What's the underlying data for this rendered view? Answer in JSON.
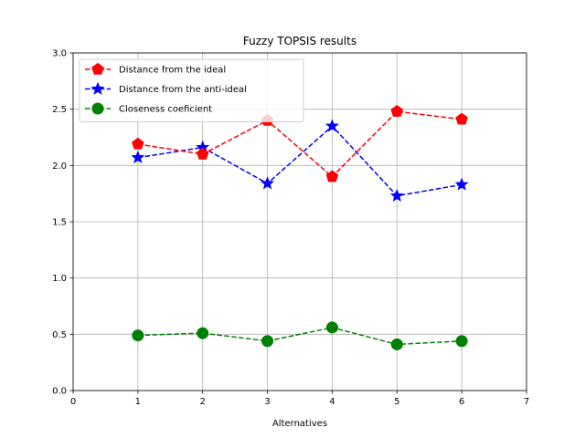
{
  "chart_data": {
    "type": "line",
    "title": "Fuzzy TOPSIS results",
    "xlabel": "Alternatives",
    "ylabel": "",
    "xlim": [
      0,
      7
    ],
    "ylim": [
      0.0,
      3.0
    ],
    "xticks": [
      "0",
      "1",
      "2",
      "3",
      "4",
      "5",
      "6",
      "7"
    ],
    "yticks": [
      "0.0",
      "0.5",
      "1.0",
      "1.5",
      "2.0",
      "2.5",
      "3.0"
    ],
    "grid": true,
    "legend_position": "top-left",
    "x": [
      1,
      2,
      3,
      4,
      5,
      6
    ],
    "series": [
      {
        "name": "Distance from the ideal",
        "values": [
          2.19,
          2.1,
          2.4,
          1.9,
          2.48,
          2.41
        ],
        "color": "#ff0000",
        "marker": "pentagon",
        "line_style": "dashed"
      },
      {
        "name": "Distance from the anti-ideal",
        "values": [
          2.07,
          2.16,
          1.84,
          2.35,
          1.73,
          1.83
        ],
        "color": "#0000ff",
        "marker": "star",
        "line_style": "dashed"
      },
      {
        "name": "Closeness coeficient",
        "values": [
          0.49,
          0.51,
          0.44,
          0.56,
          0.41,
          0.44
        ],
        "color": "#008000",
        "marker": "circle",
        "line_style": "dashed"
      }
    ]
  }
}
